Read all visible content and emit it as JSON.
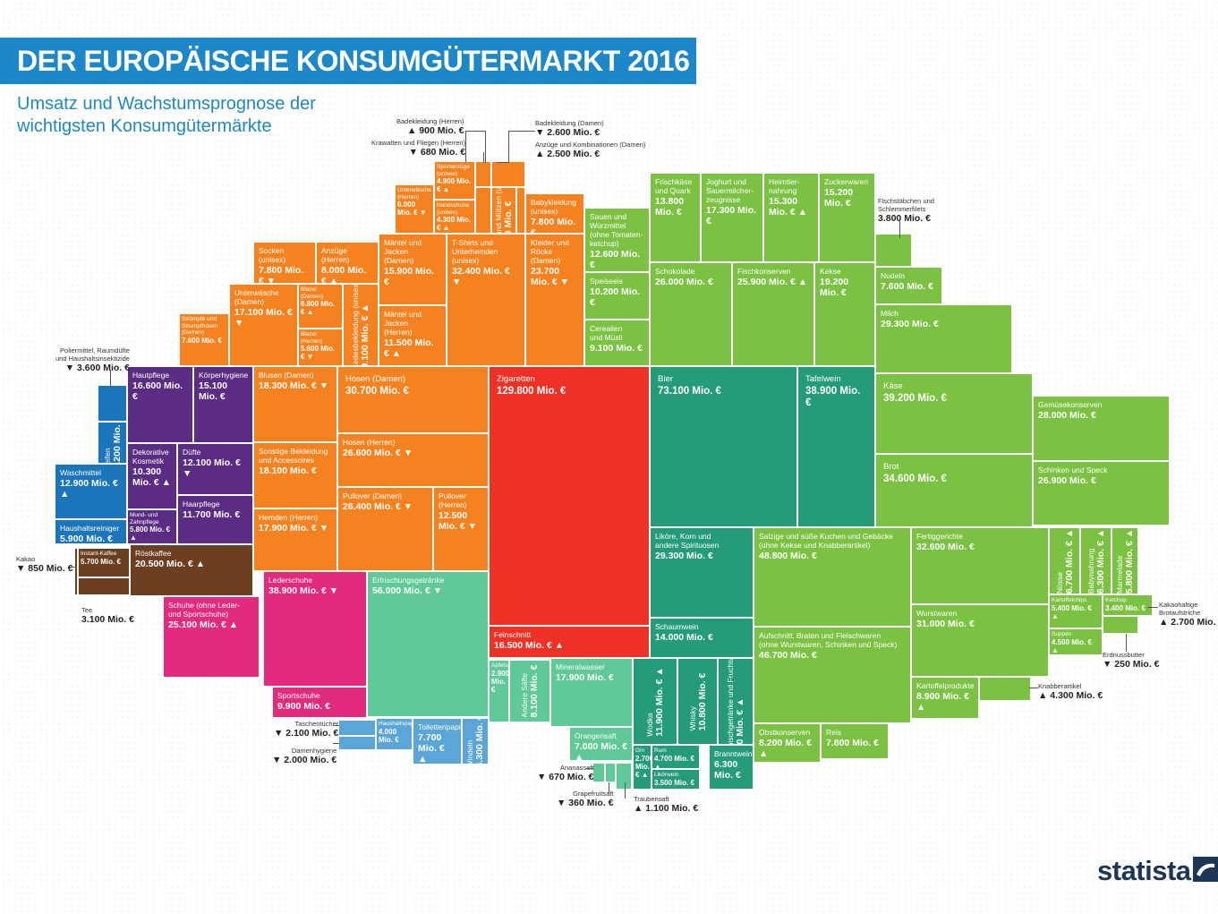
{
  "title": "DER EUROPÄISCHE KONSUMGÜTERMARKT 2016",
  "subtitle": "Umsatz und Wachstumsprognose der wichtigsten Konsumgütermärkte",
  "brand": "statista",
  "colors": {
    "title_bar": "#1c87c9",
    "clothing": "#f5821f",
    "care": "#5b2c83",
    "household": "#1b75bb",
    "coffee": "#6b3f1f",
    "shoes": "#e32a7c",
    "tobacco": "#ee3124",
    "drinks_light": "#5fc997",
    "drinks_dark": "#239c77",
    "paper": "#5aa6d8",
    "food": "#7cc242"
  },
  "chart_data": {
    "type": "treemap",
    "unit": "Mio. €",
    "items": [
      {
        "name": "Zigaretten",
        "value": "129.800 Mio. €",
        "trend": ""
      },
      {
        "name": "Bier",
        "value": "73.100 Mio. €",
        "trend": ""
      },
      {
        "name": "Erfrischungsgetränke",
        "value": "56.000 Mio. €",
        "trend": "down"
      },
      {
        "name": "Salzige und süße Kuchen und Gebäcke\n(ohne Kekse und Knabberartikel)",
        "value": "48.800 Mio. €",
        "trend": ""
      },
      {
        "name": "Aufschnitt, Braten und Fleischwaren\n(ohne Wurstwaren, Schinken und Speck)",
        "value": "46.700 Mio. €",
        "trend": ""
      },
      {
        "name": "Käse",
        "value": "39.200 Mio. €",
        "trend": ""
      },
      {
        "name": "Tafelwein",
        "value": "38.900 Mio. €",
        "trend": ""
      },
      {
        "name": "Lederschuhe",
        "value": "38.900 Mio. €",
        "trend": "down"
      },
      {
        "name": "Brot",
        "value": "34.600 Mio. €",
        "trend": ""
      },
      {
        "name": "Fertiggerichte",
        "value": "32.600 Mio. €",
        "trend": ""
      },
      {
        "name": "T-Shirts und\nUnterhemden\n(unisex)",
        "value": "32.400 Mio. €",
        "trend": "down"
      },
      {
        "name": "Wurstwaren",
        "value": "31.000 Mio. €",
        "trend": ""
      },
      {
        "name": "Hosen (Damen)",
        "value": "30.700 Mio. €",
        "trend": ""
      },
      {
        "name": "Milch",
        "value": "29.300 Mio. €",
        "trend": ""
      },
      {
        "name": "Liköre, Korn und\nandere Spirituosen",
        "value": "29.300 Mio. €",
        "trend": ""
      },
      {
        "name": "Gemüsekonserven",
        "value": "28.000 Mio. €",
        "trend": ""
      },
      {
        "name": "Schinken und Speck",
        "value": "26.900 Mio. €",
        "trend": ""
      },
      {
        "name": "Hosen (Herren)",
        "value": "26.600 Mio. €",
        "trend": "down"
      },
      {
        "name": "Pullover (Damen)",
        "value": "26.400 Mio. €",
        "trend": "down"
      },
      {
        "name": "Schokolade",
        "value": "26.000 Mio. €",
        "trend": ""
      },
      {
        "name": "Fischkonserven",
        "value": "25.900 Mio. €",
        "trend": "up"
      },
      {
        "name": "Schuhe (ohne Leder-\nund Sportschuhe)",
        "value": "25.100 Mio. €",
        "trend": "up"
      },
      {
        "name": "Kleider und\nRöcke (Damen)",
        "value": "23.700 Mio. €",
        "trend": "down"
      },
      {
        "name": "Röstkaffee",
        "value": "20.500 Mio. €",
        "trend": "up"
      },
      {
        "name": "Kekse",
        "value": "19.200 Mio. €",
        "trend": ""
      },
      {
        "name": "Blusen (Damen)",
        "value": "18.300 Mio. €",
        "trend": "down"
      },
      {
        "name": "Sonstige Bekleidung\nund Accessoires",
        "value": "18.100 Mio. €",
        "trend": ""
      },
      {
        "name": "Hemden (Herren)",
        "value": "17.900 Mio. €",
        "trend": "down"
      },
      {
        "name": "Mineralwasser",
        "value": "17.900 Mio. €",
        "trend": ""
      },
      {
        "name": "Joghurt und\nSauermilcher-\nzeugnisse",
        "value": "17.300 Mio. €",
        "trend": ""
      },
      {
        "name": "Unterwäsche\n(Damen)",
        "value": "17.100 Mio. €",
        "trend": "down"
      },
      {
        "name": "Hautpflege",
        "value": "16.600 Mio. €",
        "trend": ""
      },
      {
        "name": "Feinschnitt",
        "value": "16.500 Mio. €",
        "trend": "up"
      },
      {
        "name": "Mäntel und Jacken\n(Damen)",
        "value": "15.900 Mio. €",
        "trend": ""
      },
      {
        "name": "Heimtier-\nnahrung",
        "value": "15.300 Mio. €",
        "trend": "up"
      },
      {
        "name": "Zuckerwaren",
        "value": "15.200 Mio. €",
        "trend": ""
      },
      {
        "name": "Körperhygiene",
        "value": "15.100 Mio. €",
        "trend": ""
      },
      {
        "name": "Schaumwein",
        "value": "14.000 Mio. €",
        "trend": ""
      },
      {
        "name": "Frischkäse\nund Quark",
        "value": "13.800 Mio. €",
        "trend": ""
      },
      {
        "name": "Waschmittel",
        "value": "12.900 Mio. €",
        "trend": "up"
      },
      {
        "name": "Sauen und\nWürzmittel\n(ohne Tomaten-\nketchup)",
        "value": "12.600 Mio. €",
        "trend": ""
      },
      {
        "name": "Pullover (Herren)",
        "value": "12.500 Mio. €",
        "trend": "down"
      },
      {
        "name": "Düfte",
        "value": "12.100 Mio. €",
        "trend": "down"
      },
      {
        "name": "Wodka",
        "value": "11.900 Mio. €",
        "trend": "up"
      },
      {
        "name": "Haarpflege",
        "value": "11.700 Mio. €",
        "trend": ""
      },
      {
        "name": "Mäntel und Jacken\n(Herren)",
        "value": "11.500 Mio. €",
        "trend": "up"
      },
      {
        "name": "Whisky",
        "value": "10.800 Mio. €",
        "trend": ""
      },
      {
        "name": "Dekorative\nKosmetik",
        "value": "10.300 Mio. €",
        "trend": "up"
      },
      {
        "name": "Speiseeis",
        "value": "10.200 Mio. €",
        "trend": ""
      },
      {
        "name": "Sportschuhe",
        "value": "9.900 Mio. €",
        "trend": ""
      },
      {
        "name": "Biermischgetränke\nund Fruchtweine",
        "value": "9.900 Mio. €",
        "trend": "up"
      },
      {
        "name": "Cerealien\nund Müsli",
        "value": "9.100 Mio. €",
        "trend": ""
      },
      {
        "name": "Ledesbekleidung\n(unisex)",
        "value": "9.100 Mio. €",
        "trend": "up"
      },
      {
        "name": "Kartoffelprodukte",
        "value": "8.900 Mio. €",
        "trend": "up"
      },
      {
        "name": "Obstkonserven",
        "value": "8.200 Mio. €",
        "trend": "up"
      },
      {
        "name": "Andere Säfte",
        "value": "8.100 Mio. €",
        "trend": ""
      },
      {
        "name": "Anzüge\n(Herren)",
        "value": "8.000 Mio. €",
        "trend": "up"
      },
      {
        "name": "Socken\n(unisex)",
        "value": "7.800 Mio. €",
        "trend": "down"
      },
      {
        "name": "Babykleidung\n(unisex)",
        "value": "7.800 Mio. €",
        "trend": ""
      },
      {
        "name": "Reis",
        "value": "7.800 Mio. €",
        "trend": ""
      },
      {
        "name": "Toilettenpapier",
        "value": "7.700 Mio. €",
        "trend": "up"
      },
      {
        "name": "Nudeln",
        "value": "7.600 Mio. €",
        "trend": ""
      },
      {
        "name": "Strümpfe und\nStrumpfhosen\n(Damen)",
        "value": "7.600 Mio. €",
        "trend": ""
      },
      {
        "name": "Orangensaft",
        "value": "7.000 Mio. €",
        "trend": "up"
      },
      {
        "name": "Blazer (Damen)",
        "value": "6.800 Mio. €",
        "trend": "up"
      },
      {
        "name": "Nüsse",
        "value": "6.700 Mio. €",
        "trend": "up"
      },
      {
        "name": "Branntwein",
        "value": "6.300 Mio. €",
        "trend": ""
      },
      {
        "name": "Babynahrung",
        "value": "6.300 Mio. €",
        "trend": "up"
      },
      {
        "name": "Unterwäsche\n(Herren)",
        "value": "6.000 Mio. €",
        "trend": "down"
      },
      {
        "name": "Haushaltsreiniger",
        "value": "5.900 Mio. €",
        "trend": "up"
      },
      {
        "name": "Mund- und\nZahnpflege",
        "value": "5.800 Mio. €",
        "trend": "up"
      },
      {
        "name": "Marmelade",
        "value": "5.800 Mio. €",
        "trend": "up"
      },
      {
        "name": "Instant-Kaffee",
        "value": "5.700 Mio. €",
        "trend": ""
      },
      {
        "name": "Blazer (Herren)",
        "value": "5.600 Mio. €",
        "trend": "down"
      },
      {
        "name": "Kartoffelchips",
        "value": "5.400 Mio. €",
        "trend": "up"
      },
      {
        "name": "Sportanzüge\n(unisex)",
        "value": "4.900 Mio. €",
        "trend": "up"
      },
      {
        "name": "Rum",
        "value": "4.700 Mio. €",
        "trend": "up"
      },
      {
        "name": "Suppen",
        "value": "4.500 Mio. €",
        "trend": "up"
      },
      {
        "name": "Handschuhe\n(unisex)",
        "value": "4.300 Mio. €",
        "trend": "up"
      },
      {
        "name": "Windeln",
        "value": "4.300 Mio. €",
        "trend": ""
      },
      {
        "name": "Seifen",
        "value": "4.200 Mio. €",
        "trend": ""
      },
      {
        "name": "Haushaltspapier",
        "value": "4.000 Mio. €",
        "trend": ""
      },
      {
        "name": "Hüte und Mützen (unisex)",
        "value": "3.800 Mio. €",
        "trend": ""
      },
      {
        "name": "Likörwein",
        "value": "3.500 Mio. €",
        "trend": ""
      },
      {
        "name": "Ketchup",
        "value": "3.400 Mio. €",
        "trend": ""
      },
      {
        "name": "Apfelsaft",
        "value": "2.900 Mio. €",
        "trend": ""
      },
      {
        "name": "Gin",
        "value": "2.700 Mio. €",
        "trend": "up"
      }
    ],
    "callouts": [
      {
        "name": "Badekleidung (Herren)",
        "value": "900 Mio. €",
        "trend": "up"
      },
      {
        "name": "Krawatten und Fliegen (Herren)",
        "value": "680 Mio. €",
        "trend": "down"
      },
      {
        "name": "Badekleidung (Damen)",
        "value": "2.600 Mio. €",
        "trend": "down"
      },
      {
        "name": "Anzüge und Kombinationen (Damen)",
        "value": "2.500 Mio. €",
        "trend": "up"
      },
      {
        "name": "Fischstäbchen und\nSchlemmerfilets",
        "value": "3.800 Mio. €",
        "trend": ""
      },
      {
        "name": "Poliermittel, Raumdüfte\nund Haushaltsinsektizide",
        "value": "3.600 Mio. €",
        "trend": "down"
      },
      {
        "name": "Kakao",
        "value": "850 Mio. €",
        "trend": "down"
      },
      {
        "name": "Tee",
        "value": "3.100 Mio. €",
        "trend": ""
      },
      {
        "name": "Taschentücher",
        "value": "2.100 Mio. €",
        "trend": "down"
      },
      {
        "name": "Damenhygiene",
        "value": "2.000 Mio. €",
        "trend": "down"
      },
      {
        "name": "Ananassaft",
        "value": "670 Mio. €",
        "trend": "down"
      },
      {
        "name": "Grapefruitsaft",
        "value": "360 Mio. €",
        "trend": "down"
      },
      {
        "name": "Traubensaft",
        "value": "1.100 Mio. €",
        "trend": "up"
      },
      {
        "name": "Knabberartikel",
        "value": "4.300 Mio. €",
        "trend": "up"
      },
      {
        "name": "Kakaohaltige\nBrotaufstriche",
        "value": "2.700 Mio. €",
        "trend": "up"
      },
      {
        "name": "Erdnussbutter",
        "value": "250 Mio. €",
        "trend": "down"
      }
    ]
  }
}
